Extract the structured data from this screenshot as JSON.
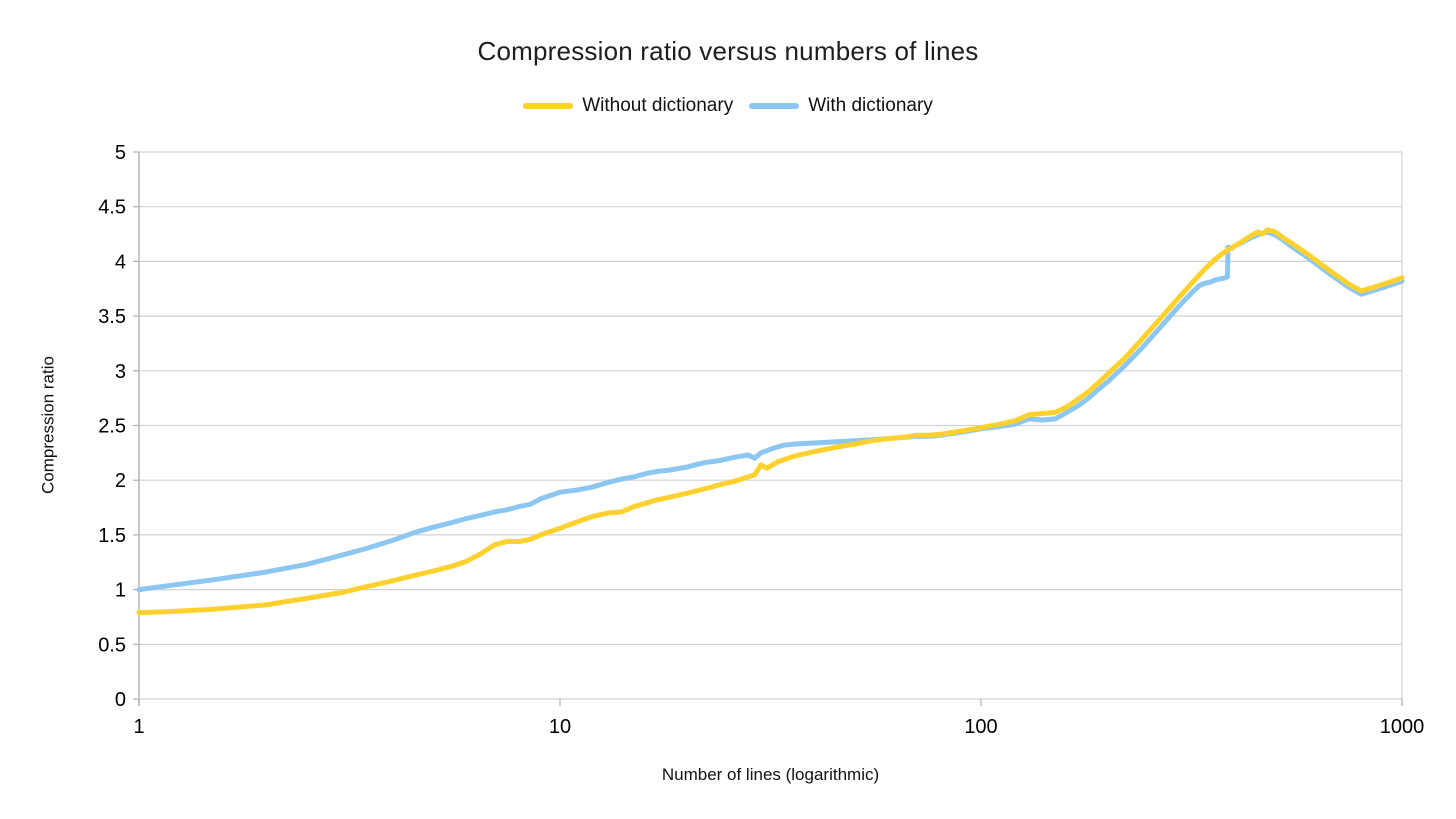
{
  "chart_data": {
    "type": "line",
    "title": "Compression ratio versus numbers of lines",
    "xlabel": "Number of lines (logarithmic)",
    "ylabel": "Compression ratio",
    "x_scale": "log",
    "xlim": [
      1,
      1000
    ],
    "ylim": [
      0,
      5
    ],
    "x_ticks": [
      1,
      10,
      100,
      1000
    ],
    "y_ticks": [
      0,
      0.5,
      1,
      1.5,
      2,
      2.5,
      3,
      3.5,
      4,
      4.5,
      5
    ],
    "grid": "horizontal",
    "legend_position": "top",
    "colors": {
      "gridline": "#d2d2d2",
      "axis": "#b0b0b0",
      "tick_text": "#000000"
    },
    "series": [
      {
        "name": "Without dictionary",
        "color": "#FFD12E",
        "points": [
          [
            1,
            0.79
          ],
          [
            1.2,
            0.8
          ],
          [
            1.5,
            0.82
          ],
          [
            2,
            0.86
          ],
          [
            2.5,
            0.92
          ],
          [
            3,
            0.97
          ],
          [
            3.5,
            1.03
          ],
          [
            4,
            1.08
          ],
          [
            4.5,
            1.13
          ],
          [
            5,
            1.17
          ],
          [
            5.5,
            1.21
          ],
          [
            6,
            1.26
          ],
          [
            6.5,
            1.33
          ],
          [
            7,
            1.41
          ],
          [
            7.5,
            1.44
          ],
          [
            8,
            1.44
          ],
          [
            8.5,
            1.46
          ],
          [
            9,
            1.5
          ],
          [
            10,
            1.56
          ],
          [
            11,
            1.62
          ],
          [
            12,
            1.67
          ],
          [
            13,
            1.7
          ],
          [
            14,
            1.71
          ],
          [
            15,
            1.76
          ],
          [
            16,
            1.79
          ],
          [
            17,
            1.82
          ],
          [
            18,
            1.84
          ],
          [
            20,
            1.88
          ],
          [
            22,
            1.92
          ],
          [
            24,
            1.96
          ],
          [
            26,
            1.99
          ],
          [
            28,
            2.03
          ],
          [
            29,
            2.05
          ],
          [
            30,
            2.14
          ],
          [
            31,
            2.11
          ],
          [
            33,
            2.17
          ],
          [
            36,
            2.22
          ],
          [
            40,
            2.26
          ],
          [
            45,
            2.3
          ],
          [
            50,
            2.33
          ],
          [
            55,
            2.36
          ],
          [
            60,
            2.38
          ],
          [
            65,
            2.39
          ],
          [
            70,
            2.41
          ],
          [
            75,
            2.41
          ],
          [
            80,
            2.42
          ],
          [
            90,
            2.45
          ],
          [
            100,
            2.48
          ],
          [
            110,
            2.51
          ],
          [
            120,
            2.54
          ],
          [
            130,
            2.6
          ],
          [
            140,
            2.61
          ],
          [
            150,
            2.62
          ],
          [
            160,
            2.67
          ],
          [
            170,
            2.74
          ],
          [
            180,
            2.81
          ],
          [
            190,
            2.89
          ],
          [
            200,
            2.97
          ],
          [
            220,
            3.12
          ],
          [
            240,
            3.28
          ],
          [
            260,
            3.43
          ],
          [
            280,
            3.57
          ],
          [
            300,
            3.7
          ],
          [
            320,
            3.82
          ],
          [
            340,
            3.93
          ],
          [
            360,
            4.02
          ],
          [
            380,
            4.09
          ],
          [
            400,
            4.14
          ],
          [
            420,
            4.19
          ],
          [
            440,
            4.24
          ],
          [
            455,
            4.27
          ],
          [
            465,
            4.25
          ],
          [
            480,
            4.29
          ],
          [
            500,
            4.27
          ],
          [
            520,
            4.22
          ],
          [
            550,
            4.16
          ],
          [
            600,
            4.06
          ],
          [
            650,
            3.96
          ],
          [
            700,
            3.87
          ],
          [
            750,
            3.79
          ],
          [
            800,
            3.73
          ],
          [
            850,
            3.76
          ],
          [
            900,
            3.79
          ],
          [
            950,
            3.82
          ],
          [
            1000,
            3.85
          ]
        ]
      },
      {
        "name": "With dictionary",
        "color": "#8CC7F1",
        "points": [
          [
            1,
            1.0
          ],
          [
            1.2,
            1.04
          ],
          [
            1.5,
            1.09
          ],
          [
            2,
            1.16
          ],
          [
            2.5,
            1.23
          ],
          [
            3,
            1.31
          ],
          [
            3.5,
            1.38
          ],
          [
            4,
            1.45
          ],
          [
            4.5,
            1.52
          ],
          [
            5,
            1.57
          ],
          [
            5.5,
            1.61
          ],
          [
            6,
            1.65
          ],
          [
            6.5,
            1.68
          ],
          [
            7,
            1.71
          ],
          [
            7.5,
            1.73
          ],
          [
            8,
            1.76
          ],
          [
            8.5,
            1.78
          ],
          [
            9,
            1.83
          ],
          [
            10,
            1.89
          ],
          [
            11,
            1.91
          ],
          [
            12,
            1.94
          ],
          [
            13,
            1.98
          ],
          [
            14,
            2.01
          ],
          [
            15,
            2.03
          ],
          [
            16,
            2.06
          ],
          [
            17,
            2.08
          ],
          [
            18,
            2.09
          ],
          [
            20,
            2.12
          ],
          [
            22,
            2.16
          ],
          [
            24,
            2.18
          ],
          [
            26,
            2.21
          ],
          [
            28,
            2.23
          ],
          [
            29,
            2.2
          ],
          [
            30,
            2.25
          ],
          [
            32,
            2.29
          ],
          [
            34,
            2.32
          ],
          [
            36,
            2.33
          ],
          [
            40,
            2.34
          ],
          [
            45,
            2.35
          ],
          [
            50,
            2.36
          ],
          [
            55,
            2.37
          ],
          [
            60,
            2.38
          ],
          [
            65,
            2.39
          ],
          [
            70,
            2.4
          ],
          [
            75,
            2.4
          ],
          [
            80,
            2.41
          ],
          [
            90,
            2.44
          ],
          [
            100,
            2.47
          ],
          [
            110,
            2.49
          ],
          [
            120,
            2.51
          ],
          [
            130,
            2.56
          ],
          [
            140,
            2.55
          ],
          [
            150,
            2.56
          ],
          [
            160,
            2.62
          ],
          [
            170,
            2.68
          ],
          [
            180,
            2.75
          ],
          [
            190,
            2.83
          ],
          [
            200,
            2.9
          ],
          [
            220,
            3.05
          ],
          [
            240,
            3.2
          ],
          [
            260,
            3.35
          ],
          [
            280,
            3.49
          ],
          [
            300,
            3.62
          ],
          [
            320,
            3.73
          ],
          [
            330,
            3.78
          ],
          [
            340,
            3.8
          ],
          [
            350,
            3.81
          ],
          [
            360,
            3.83
          ],
          [
            370,
            3.84
          ],
          [
            380,
            3.85
          ],
          [
            385,
            3.86
          ],
          [
            386,
            4.13
          ],
          [
            395,
            4.12
          ],
          [
            400,
            4.14
          ],
          [
            420,
            4.18
          ],
          [
            440,
            4.22
          ],
          [
            460,
            4.25
          ],
          [
            480,
            4.27
          ],
          [
            500,
            4.24
          ],
          [
            520,
            4.2
          ],
          [
            550,
            4.13
          ],
          [
            600,
            4.03
          ],
          [
            650,
            3.93
          ],
          [
            700,
            3.84
          ],
          [
            750,
            3.76
          ],
          [
            800,
            3.7
          ],
          [
            850,
            3.73
          ],
          [
            900,
            3.76
          ],
          [
            950,
            3.79
          ],
          [
            1000,
            3.82
          ]
        ]
      }
    ]
  }
}
